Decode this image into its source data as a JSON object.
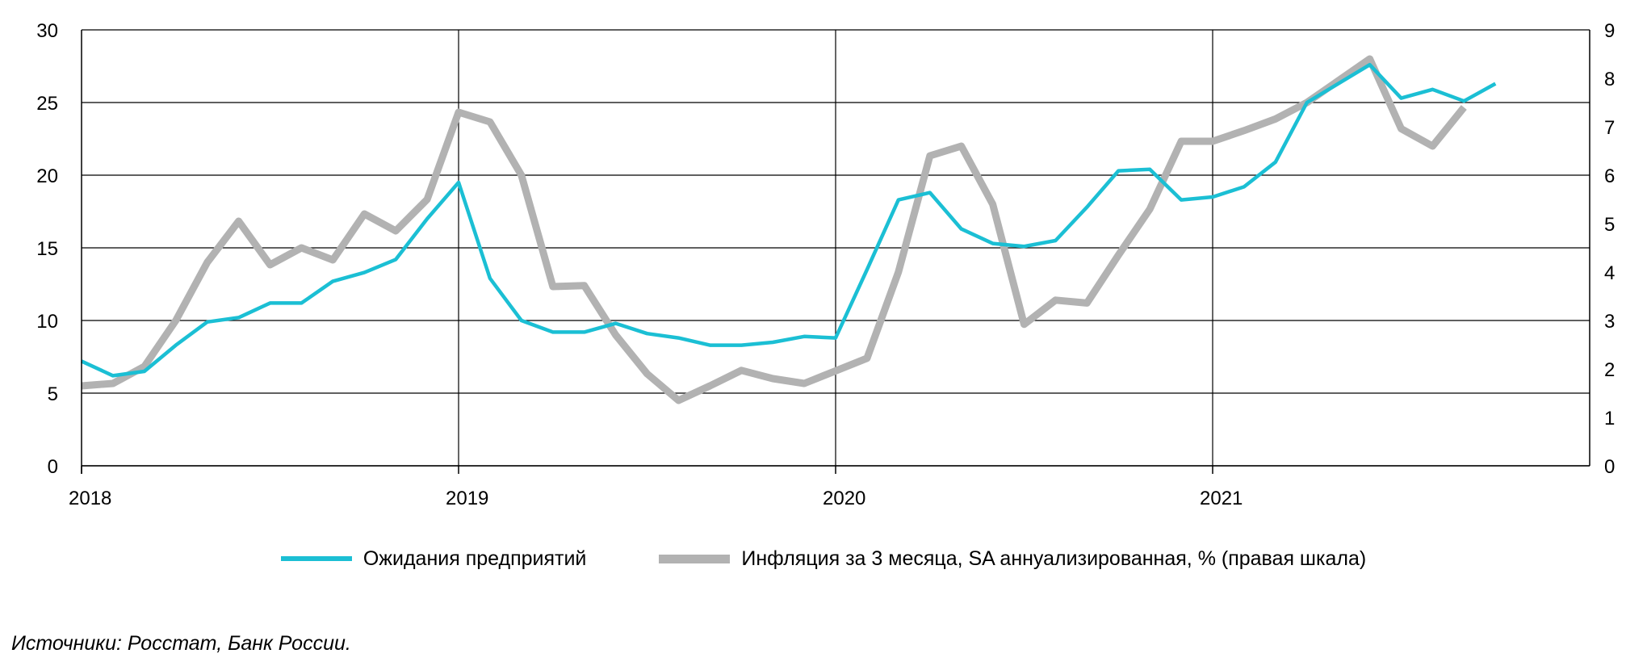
{
  "chart_data": {
    "type": "line",
    "title": "",
    "x_ticks": [
      "2018",
      "2019",
      "2020",
      "2021"
    ],
    "x_range": [
      2018.0,
      2022.0
    ],
    "y_left": {
      "min": 0,
      "max": 30,
      "ticks": [
        "0",
        "5",
        "10",
        "15",
        "20",
        "25",
        "30"
      ]
    },
    "y_right": {
      "min": 0,
      "max": 9,
      "ticks": [
        "0",
        "1",
        "2",
        "3",
        "4",
        "5",
        "6",
        "7",
        "8",
        "9"
      ]
    },
    "grid": true,
    "legend_position": "bottom",
    "series": [
      {
        "name": "Ожидания предприятий",
        "axis": "left",
        "color": "#1bbfd4",
        "x": [
          "2018-01",
          "2018-02",
          "2018-03",
          "2018-04",
          "2018-05",
          "2018-06",
          "2018-07",
          "2018-08",
          "2018-09",
          "2018-10",
          "2018-11",
          "2018-12",
          "2019-01",
          "2019-02",
          "2019-03",
          "2019-04",
          "2019-05",
          "2019-06",
          "2019-07",
          "2019-08",
          "2019-09",
          "2019-10",
          "2019-11",
          "2019-12",
          "2020-01",
          "2020-02",
          "2020-03",
          "2020-04",
          "2020-05",
          "2020-06",
          "2020-07",
          "2020-08",
          "2020-09",
          "2020-10",
          "2020-11",
          "2020-12",
          "2021-01",
          "2021-02",
          "2021-03",
          "2021-04",
          "2021-05",
          "2021-06",
          "2021-07",
          "2021-08",
          "2021-09",
          "2021-10"
        ],
        "values": [
          7.2,
          6.2,
          6.5,
          8.3,
          9.9,
          10.2,
          11.2,
          11.2,
          12.7,
          13.3,
          14.2,
          17.0,
          19.5,
          12.9,
          10.0,
          9.2,
          9.2,
          9.8,
          9.1,
          8.8,
          8.3,
          8.3,
          8.5,
          8.9,
          8.8,
          13.5,
          18.3,
          18.8,
          16.3,
          15.3,
          15.1,
          15.5,
          17.8,
          20.3,
          20.4,
          18.3,
          18.5,
          19.2,
          20.9,
          25.0,
          26.3,
          27.6,
          25.3,
          25.9,
          25.1,
          26.3
        ]
      },
      {
        "name": "Инфляция за 3 месяца, SA аннуализированная, % (правая шкала)",
        "axis": "right",
        "color": "#b2b2b2",
        "x": [
          "2018-01",
          "2018-02",
          "2018-03",
          "2018-04",
          "2018-05",
          "2018-06",
          "2018-07",
          "2018-08",
          "2018-09",
          "2018-10",
          "2018-11",
          "2018-12",
          "2019-01",
          "2019-02",
          "2019-03",
          "2019-04",
          "2019-05",
          "2019-06",
          "2019-07",
          "2019-08",
          "2019-09",
          "2019-10",
          "2019-11",
          "2019-12",
          "2020-01",
          "2020-02",
          "2020-03",
          "2020-04",
          "2020-05",
          "2020-06",
          "2020-07",
          "2020-08",
          "2020-09",
          "2020-10",
          "2020-11",
          "2020-12",
          "2021-01",
          "2021-02",
          "2021-03",
          "2021-04",
          "2021-05",
          "2021-06",
          "2021-07",
          "2021-08",
          "2021-09"
        ],
        "values": [
          1.65,
          1.7,
          2.05,
          3.0,
          4.2,
          5.05,
          4.15,
          4.5,
          4.25,
          5.2,
          4.85,
          5.5,
          7.3,
          7.1,
          6.0,
          3.7,
          3.72,
          2.7,
          1.9,
          1.35,
          1.65,
          1.97,
          1.8,
          1.7,
          1.96,
          2.22,
          4.0,
          6.4,
          6.6,
          5.4,
          2.92,
          3.42,
          3.36,
          4.35,
          5.3,
          6.7,
          6.7,
          6.92,
          7.16,
          7.5,
          7.95,
          8.4,
          6.96,
          6.6,
          7.4
        ]
      }
    ]
  },
  "source_note": "Источники: Росстат, Банк России."
}
